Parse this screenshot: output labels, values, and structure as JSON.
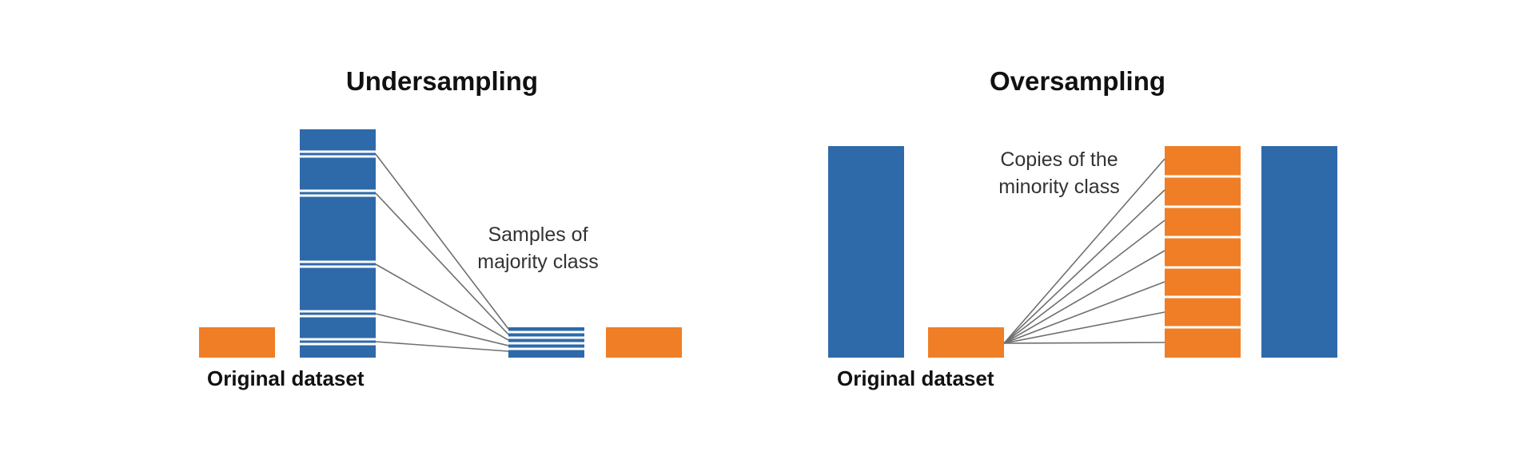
{
  "colors": {
    "majority": "#2e6aa9",
    "minority": "#f07e26",
    "line": "#6f6f6f"
  },
  "undersampling": {
    "title": "Undersampling",
    "caption": "Original dataset",
    "annotation_line1": "Samples of",
    "annotation_line2": "majority class"
  },
  "oversampling": {
    "title": "Oversampling",
    "caption": "Original dataset",
    "annotation_line1": "Copies of the",
    "annotation_line2": "minority class"
  }
}
